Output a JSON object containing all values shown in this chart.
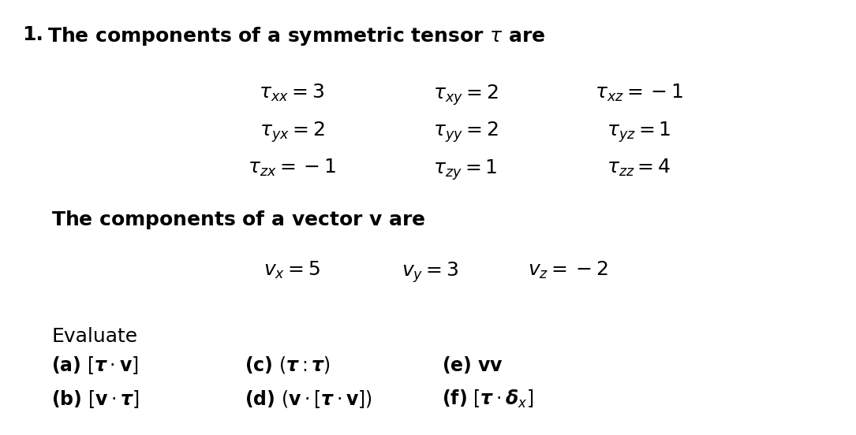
{
  "bg_color": "#ffffff",
  "fig_width": 10.85,
  "fig_height": 5.52,
  "dpi": 100,
  "title_number": "1.",
  "title_rest": "  The components of a symmetric tensor ",
  "title_tau": "$\\tau$",
  "title_end": " are",
  "tensor_rows": [
    [
      "$\\tau_{xx} = 3$",
      "$\\tau_{xy} = 2$",
      "$\\tau_{xz} = -1$"
    ],
    [
      "$\\tau_{yx} = 2$",
      "$\\tau_{yy} = 2$",
      "$\\tau_{yz} = 1$"
    ],
    [
      "$\\tau_{zx} = -1$",
      "$\\tau_{zy} = 1$",
      "$\\tau_{zz} = 4$"
    ]
  ],
  "vector_intro_plain": "The components of a vector ",
  "vector_intro_bold": "v",
  "vector_intro_end": " are",
  "vector_row": [
    "$v_x = 5$",
    "$v_y = 3$",
    "$v_z = -2$"
  ],
  "evaluate_label": "Evaluate",
  "items_col1": [
    "(a) $[\\boldsymbol{\\tau} \\cdot \\mathbf{v}]$",
    "(b) $[\\mathbf{v} \\cdot \\boldsymbol{\\tau}]$"
  ],
  "items_col2": [
    "(c) $(\\boldsymbol{\\tau} : \\boldsymbol{\\tau})$",
    "(d) $(\\mathbf{v} \\cdot [\\boldsymbol{\\tau} \\cdot \\mathbf{v}])$"
  ],
  "items_col3": [
    "(e) $\\mathbf{vv}$",
    "(f) $[\\boldsymbol{\\tau} \\cdot \\boldsymbol{\\delta}_x]$"
  ],
  "main_fontsize": 18,
  "math_fontsize": 18,
  "item_fontsize": 17
}
